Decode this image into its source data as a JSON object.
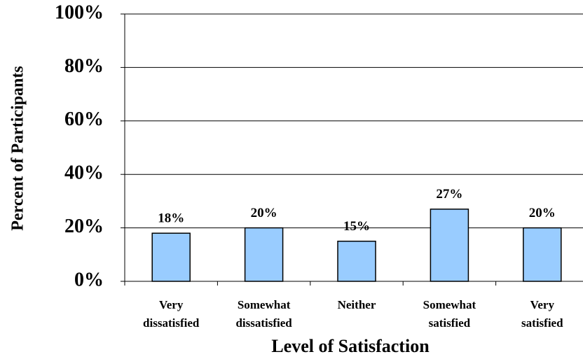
{
  "chart_data": {
    "type": "bar",
    "x_label": "Level of Satisfaction",
    "y_label": "Percent of Participants",
    "categories": [
      "Very\ndissatisfied",
      "Somewhat\ndissatisfied",
      "Neither",
      "Somewhat\nsatisfied",
      "Very\nsatisfied"
    ],
    "values": [
      18,
      20,
      15,
      27,
      20
    ],
    "value_labels": [
      "18%",
      "20%",
      "15%",
      "27%",
      "20%"
    ],
    "color": "#99ccff",
    "ylim": [
      0,
      100
    ],
    "yticks": [
      {
        "value": 0,
        "label": "0%"
      },
      {
        "value": 20,
        "label": "20%"
      },
      {
        "value": 40,
        "label": "40%"
      },
      {
        "value": 60,
        "label": "60%"
      },
      {
        "value": 80,
        "label": "80%"
      },
      {
        "value": 100,
        "label": "100%"
      }
    ],
    "grid": true
  }
}
